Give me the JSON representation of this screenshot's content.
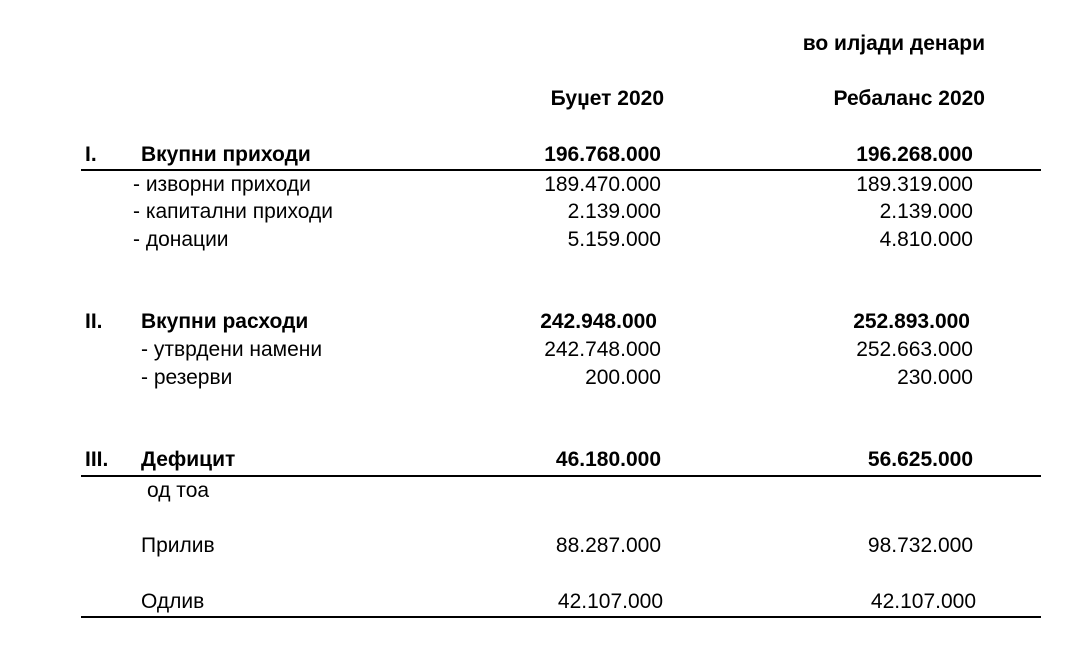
{
  "unit_note": "во илјади денари",
  "columns": [
    "Буџет 2020",
    "Ребаланс 2020"
  ],
  "sections": [
    {
      "numeral": "I.",
      "label": "Вкупни приходи",
      "values": [
        "196.768.000",
        "196.268.000"
      ],
      "items": [
        {
          "label": "- изворни приходи",
          "values": [
            "189.470.000",
            "189.319.000"
          ]
        },
        {
          "label": "- капитални приходи",
          "values": [
            "2.139.000",
            "2.139.000"
          ]
        },
        {
          "label": "- донации",
          "values": [
            "5.159.000",
            "4.810.000"
          ]
        }
      ]
    },
    {
      "numeral": "II.",
      "label": "Вкупни расходи",
      "values": [
        "242.948.000",
        "252.893.000"
      ],
      "items": [
        {
          "label": "- утврдени намени",
          "values": [
            "242.748.000",
            "252.663.000"
          ]
        },
        {
          "label": "- резерви",
          "values": [
            "200.000",
            "230.000"
          ]
        }
      ]
    },
    {
      "numeral": "III.",
      "label": "Дефицит",
      "values": [
        "46.180.000",
        "56.625.000"
      ],
      "subheading": "од тоа",
      "items": [
        {
          "label": "Прилив",
          "values": [
            "88.287.000",
            "98.732.000"
          ]
        },
        {
          "label": "Одлив",
          "values": [
            "42.107.000",
            "42.107.000"
          ]
        }
      ]
    }
  ]
}
